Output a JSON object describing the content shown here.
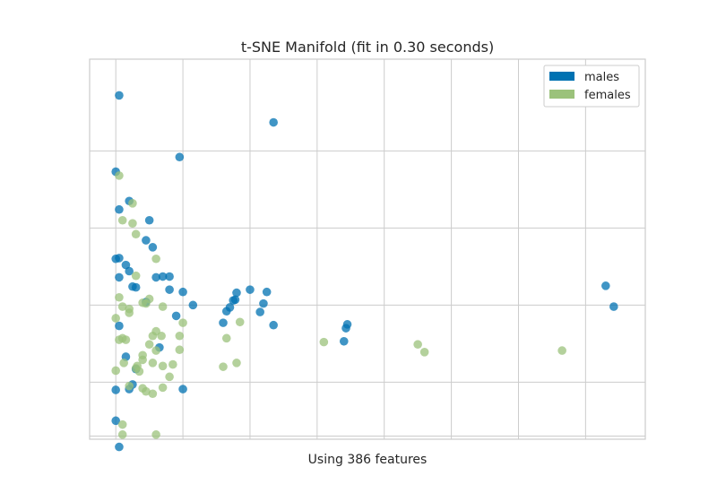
{
  "chart_data": {
    "type": "scatter",
    "title": "t-SNE Manifold (fit in 0.30 seconds)",
    "xlabel": "Using 386 features",
    "ylabel": "",
    "xlim": [
      -3.9,
      78.9
    ],
    "ylim": [
      -7.4,
      41.9
    ],
    "grid": true,
    "legend_position": "top-right",
    "series": [
      {
        "name": "males",
        "color": "#0072b2",
        "points": [
          [
            0.5,
            37.2
          ],
          [
            23.5,
            33.7
          ],
          [
            9.5,
            29.2
          ],
          [
            0,
            27.3
          ],
          [
            2,
            23.5
          ],
          [
            0.5,
            22.4
          ],
          [
            5,
            21
          ],
          [
            4.5,
            18.4
          ],
          [
            5.5,
            17.5
          ],
          [
            0.5,
            16.1
          ],
          [
            0,
            16
          ],
          [
            1.5,
            15.2
          ],
          [
            2,
            14.4
          ],
          [
            0.5,
            13.6
          ],
          [
            6,
            13.6
          ],
          [
            8,
            13.7
          ],
          [
            7,
            13.7
          ],
          [
            2.5,
            12.4
          ],
          [
            3,
            12.3
          ],
          [
            8,
            12
          ],
          [
            10,
            11.7
          ],
          [
            4.5,
            10.4
          ],
          [
            18,
            11.6
          ],
          [
            20,
            12
          ],
          [
            22.5,
            11.7
          ],
          [
            17.8,
            10.7
          ],
          [
            17.5,
            10.6
          ],
          [
            22,
            10.2
          ],
          [
            11.5,
            10
          ],
          [
            17,
            9.7
          ],
          [
            16.5,
            9.2
          ],
          [
            21.5,
            9.1
          ],
          [
            9,
            8.6
          ],
          [
            0.5,
            7.3
          ],
          [
            16,
            7.7
          ],
          [
            23.5,
            7.4
          ],
          [
            34.5,
            7.5
          ],
          [
            34.3,
            7
          ],
          [
            6.5,
            4.5
          ],
          [
            1.5,
            3.3
          ],
          [
            3,
            1.7
          ],
          [
            0,
            -1
          ],
          [
            2.5,
            -0.3
          ],
          [
            2,
            -0.9
          ],
          [
            10,
            -0.9
          ],
          [
            0,
            -5
          ],
          [
            0.5,
            -8.4
          ],
          [
            34,
            5.3
          ],
          [
            73,
            12.5
          ],
          [
            74.2,
            9.8
          ]
        ]
      },
      {
        "name": "females",
        "color": "#9bc27b",
        "points": [
          [
            0.5,
            26.8
          ],
          [
            2.5,
            23.2
          ],
          [
            1,
            21
          ],
          [
            2.5,
            20.6
          ],
          [
            3,
            19.2
          ],
          [
            6,
            16
          ],
          [
            3,
            13.8
          ],
          [
            5,
            10.8
          ],
          [
            1,
            9.8
          ],
          [
            2,
            9.5
          ],
          [
            4,
            10.3
          ],
          [
            4.5,
            10.2
          ],
          [
            7,
            9.8
          ],
          [
            2,
            9
          ],
          [
            10,
            7.7
          ],
          [
            0,
            8.3
          ],
          [
            6,
            6.6
          ],
          [
            5.5,
            6
          ],
          [
            6.8,
            6
          ],
          [
            9.5,
            6
          ],
          [
            0.5,
            5.5
          ],
          [
            1,
            5.7
          ],
          [
            1.5,
            5.5
          ],
          [
            18.5,
            7.8
          ],
          [
            16.5,
            5.7
          ],
          [
            5,
            4.9
          ],
          [
            9.5,
            4.2
          ],
          [
            6,
            4.1
          ],
          [
            4,
            3.5
          ],
          [
            4,
            2.9
          ],
          [
            1.2,
            2.5
          ],
          [
            3.2,
            2.1
          ],
          [
            5.5,
            2.5
          ],
          [
            8.5,
            2.3
          ],
          [
            3,
            1.8
          ],
          [
            7,
            2.1
          ],
          [
            0,
            1.5
          ],
          [
            8,
            0.7
          ],
          [
            3.5,
            1.4
          ],
          [
            18,
            2.5
          ],
          [
            16,
            2
          ],
          [
            2,
            -0.5
          ],
          [
            4,
            -0.8
          ],
          [
            7,
            -0.7
          ],
          [
            5.5,
            -1.5
          ],
          [
            4.5,
            -1.2
          ],
          [
            1,
            -5.5
          ],
          [
            1,
            -6.8
          ],
          [
            6,
            -6.8
          ],
          [
            31,
            5.2
          ],
          [
            45,
            4.9
          ],
          [
            46,
            3.9
          ],
          [
            66.5,
            4.1
          ],
          [
            0.5,
            11
          ]
        ]
      }
    ]
  }
}
